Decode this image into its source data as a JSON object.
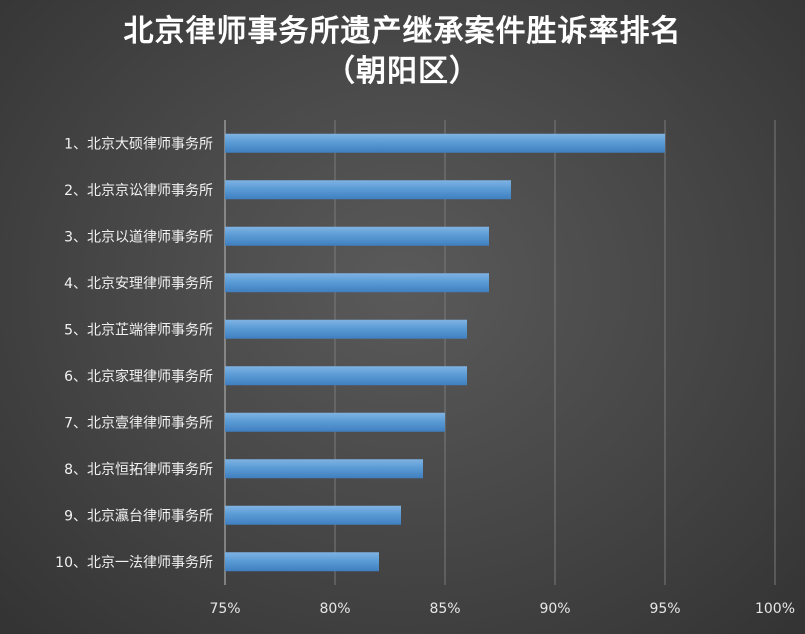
{
  "chart_data": {
    "type": "bar",
    "orientation": "horizontal",
    "title": "北京律师事务所遗产继承案件胜诉率排名",
    "subtitle": "（朝阳区）",
    "categories": [
      "1、北京大硕律师事务所",
      "2、北京京讼律师事务所",
      "3、北京以道律师事务所",
      "4、北京安理律师事务所",
      "5、北京芷端律师事务所",
      "6、北京家理律师事务所",
      "7、北京壹律律师事务所",
      "8、北京恒拓律师事务所",
      "9、北京瀛台律师事务所",
      "10、北京一法律师事务所"
    ],
    "values": [
      95,
      88,
      87,
      87,
      86,
      86,
      85,
      84,
      83,
      82
    ],
    "xlim": [
      75,
      100
    ],
    "xticks": [
      "75%",
      "80%",
      "85%",
      "90%",
      "95%",
      "100%"
    ],
    "tick_values": [
      75,
      80,
      85,
      90,
      95,
      100
    ],
    "grid": "vertical",
    "bar_color": "#5b9bd5",
    "xlabel": "",
    "ylabel": ""
  }
}
